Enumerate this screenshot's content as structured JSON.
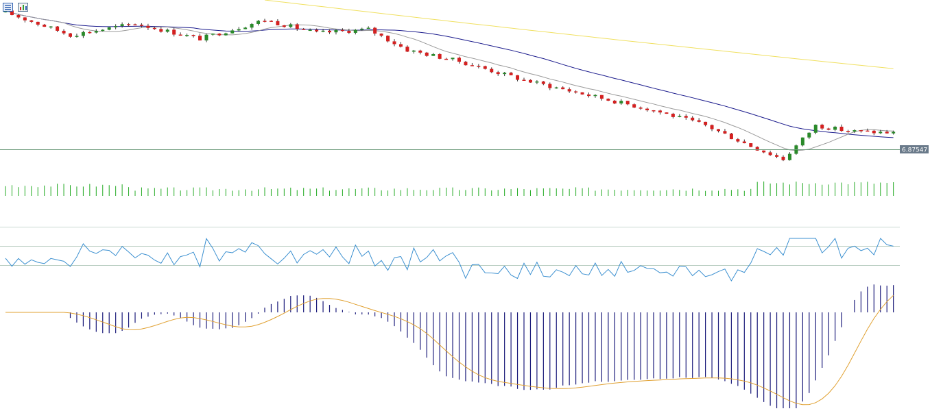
{
  "toolbar": {
    "icons": [
      "list-icon",
      "chart-settings-icon"
    ]
  },
  "chart_data": {
    "type": "candlestick",
    "price_axis": {
      "current_price_label": "6.87547"
    },
    "colors": {
      "bull_candle": "#2a8a2a",
      "bear_candle": "#d42020",
      "ma_fast": "#9a9a9a",
      "ma_medium": "#1a1a8c",
      "ma_slow": "#f0e060",
      "price_line": "#5a8a6a",
      "volume": "#22aa22",
      "oscillator": "#3a8fd0",
      "oscillator_levels": "#9ab8a8",
      "histogram": "#1a1a7a",
      "signal_line": "#e0a030"
    },
    "candles": {
      "count": 138,
      "description_points": [
        [
          0,
          0.0
        ],
        [
          10,
          -0.6
        ],
        [
          20,
          -0.3
        ],
        [
          30,
          -0.7
        ],
        [
          40,
          -0.2
        ],
        [
          48,
          -0.55
        ],
        [
          56,
          -0.45
        ],
        [
          62,
          -1.0
        ],
        [
          70,
          -1.3
        ],
        [
          80,
          -1.8
        ],
        [
          90,
          -2.2
        ],
        [
          100,
          -2.6
        ],
        [
          108,
          -3.0
        ],
        [
          115,
          -3.55
        ],
        [
          120,
          -3.9
        ],
        [
          125,
          -3.0
        ],
        [
          130,
          -3.15
        ],
        [
          137,
          -3.2
        ]
      ]
    },
    "moving_averages": [
      "fast",
      "medium",
      "slow"
    ],
    "volume": {
      "type": "bar"
    },
    "oscillator": {
      "type": "line",
      "levels": [
        "upper",
        "middle",
        "lower"
      ]
    },
    "macd": {
      "type": "histogram",
      "signal": "line"
    }
  }
}
